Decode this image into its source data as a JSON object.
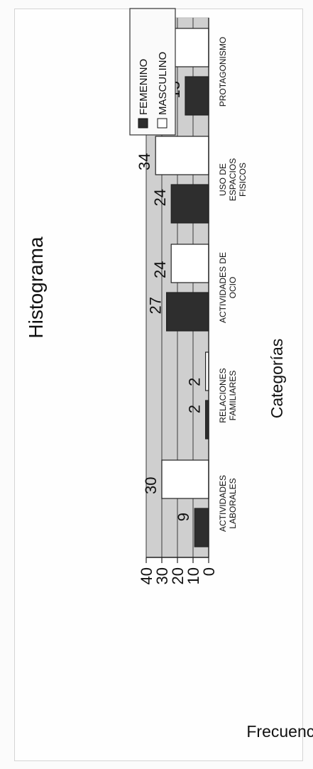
{
  "chart_data": {
    "type": "bar",
    "orientation": "vertical, page rotated 90 degrees counter-clockwise",
    "title": "Histograma",
    "xlabel": "Categorías",
    "ylabel": "Frecuencias",
    "ylim": [
      0,
      40
    ],
    "yticks": [
      0,
      10,
      20,
      30,
      40
    ],
    "grid": true,
    "legend_position": "top-right",
    "categories": [
      [
        "ACTIVIDADES",
        "LABORALES"
      ],
      [
        "RELACIONES",
        "FAMILIARES"
      ],
      [
        "ACTIVIDADES DE",
        "OCIO"
      ],
      [
        "USO DE",
        "ESPACIOS",
        "FISICOS"
      ],
      [
        "PROTAGONISMO"
      ]
    ],
    "series": [
      {
        "name": "FEMENINO",
        "values": [
          9,
          2,
          27,
          24,
          15
        ],
        "color": "#2e2e2e"
      },
      {
        "name": "MASCULINO",
        "values": [
          30,
          2,
          24,
          34,
          38
        ],
        "color": "#ffffff"
      }
    ],
    "colors": {
      "plot_background": "#cfcfcf",
      "gridline": "#555555",
      "outline": "#222222"
    }
  }
}
